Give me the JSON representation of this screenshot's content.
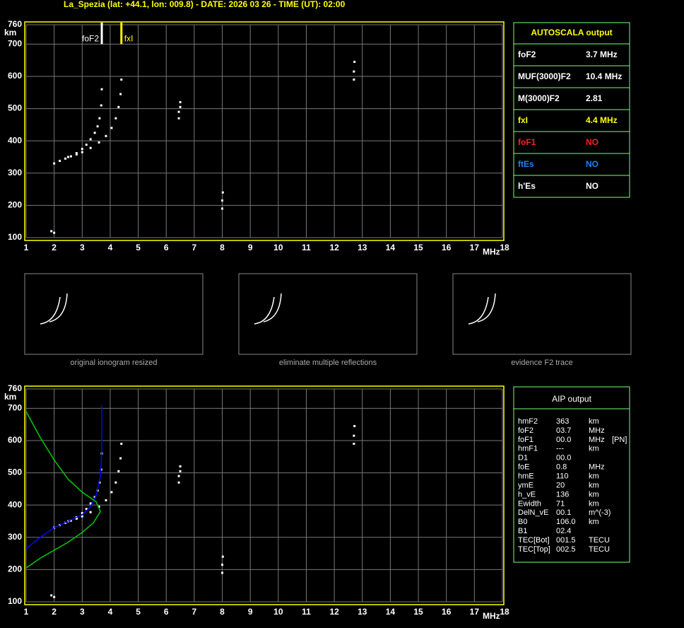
{
  "header": {
    "title": "La_Spezia (lat: +44.1, lon: 009.8) - DATE: 2026 03 26 - TIME (UT): 02:00"
  },
  "chart_data": [
    {
      "type": "scatter",
      "x_label": "MHz",
      "y_label": "km",
      "xlim": [
        1,
        18
      ],
      "ylim": [
        100,
        760
      ],
      "xticks": [
        1,
        2,
        3,
        4,
        5,
        6,
        7,
        8,
        9,
        10,
        11,
        12,
        13,
        14,
        15,
        16,
        17,
        18
      ],
      "yticks": [
        100,
        200,
        300,
        400,
        500,
        600,
        700,
        760
      ],
      "grid": true,
      "markers": [
        {
          "name": "foF2",
          "x": 3.7,
          "color": "#ffffff"
        },
        {
          "name": "fxI",
          "x": 4.4,
          "color": "#ffff00"
        }
      ],
      "series": [
        {
          "color": "#ffffff",
          "x": [
            2.0,
            2.2,
            2.4,
            2.6,
            2.8,
            3.0,
            3.15,
            3.3,
            3.45,
            3.55,
            3.62,
            3.68,
            3.7
          ],
          "values": [
            330,
            338,
            345,
            352,
            362,
            375,
            388,
            405,
            425,
            445,
            470,
            510,
            560
          ]
        },
        {
          "color": "#ffffff",
          "x": [
            2.5,
            2.8,
            3.0,
            3.3,
            3.6,
            3.85,
            4.05,
            4.2,
            4.3,
            4.37,
            4.4
          ],
          "values": [
            350,
            358,
            365,
            378,
            395,
            415,
            440,
            470,
            505,
            545,
            590
          ]
        },
        {
          "color": "#ffffff",
          "x": [
            6.45,
            6.45,
            6.5,
            6.5,
            8.0,
            8.0,
            8.02,
            12.7,
            12.7,
            12.72,
            1.9,
            2.0
          ],
          "values": [
            470,
            490,
            505,
            520,
            190,
            215,
            240,
            590,
            615,
            645,
            120,
            115
          ]
        }
      ]
    },
    {
      "type": "scatter",
      "x_label": "MHz",
      "y_label": "km",
      "xlim": [
        1,
        18
      ],
      "ylim": [
        100,
        760
      ],
      "xticks": [
        1,
        2,
        3,
        4,
        5,
        6,
        7,
        8,
        9,
        10,
        11,
        12,
        13,
        14,
        15,
        16,
        17,
        18
      ],
      "yticks": [
        100,
        200,
        300,
        400,
        500,
        600,
        700,
        760
      ],
      "grid": true,
      "series": [
        {
          "color": "#ffffff",
          "x": [
            2.0,
            2.2,
            2.4,
            2.6,
            2.8,
            3.0,
            3.15,
            3.3,
            3.45,
            3.55,
            3.62,
            3.68,
            3.7
          ],
          "values": [
            330,
            338,
            345,
            352,
            362,
            375,
            388,
            405,
            425,
            445,
            470,
            510,
            560
          ]
        },
        {
          "color": "#ffffff",
          "x": [
            2.5,
            2.8,
            3.0,
            3.3,
            3.6,
            3.85,
            4.05,
            4.2,
            4.3,
            4.37,
            4.4
          ],
          "values": [
            350,
            358,
            365,
            378,
            395,
            415,
            440,
            470,
            505,
            545,
            590
          ]
        },
        {
          "color": "#ffffff",
          "x": [
            6.45,
            6.45,
            6.5,
            6.5,
            8.0,
            8.0,
            8.02,
            12.7,
            12.7,
            12.72,
            1.9,
            2.0
          ],
          "values": [
            470,
            490,
            505,
            520,
            190,
            215,
            240,
            590,
            615,
            645,
            120,
            115
          ]
        },
        {
          "mode": "line",
          "color": "#0000ff",
          "x": [
            1.0,
            1.5,
            2.0,
            2.5,
            3.0,
            3.3,
            3.5,
            3.65,
            3.7,
            3.7
          ],
          "values": [
            265,
            300,
            330,
            350,
            370,
            395,
            430,
            490,
            560,
            710
          ]
        },
        {
          "mode": "line",
          "color": "#00cc00",
          "x": [
            1.0,
            1.5,
            2.0,
            2.5,
            3.0,
            3.4,
            3.65,
            3.5,
            3.0,
            2.5,
            2.0,
            1.5,
            1.0
          ],
          "values": [
            205,
            235,
            260,
            285,
            315,
            345,
            380,
            410,
            440,
            480,
            540,
            610,
            690
          ]
        }
      ]
    }
  ],
  "thumbnails": [
    {
      "caption": "original ionogram resized"
    },
    {
      "caption": "eliminate multiple reflections"
    },
    {
      "caption": "evidence F2 trace"
    }
  ],
  "autoscala": {
    "title": "AUTOSCALA output",
    "rows": [
      {
        "label": "foF2",
        "value": "3.7 MHz",
        "color": "#ffffff"
      },
      {
        "label": "MUF(3000)F2",
        "value": "10.4 MHz",
        "color": "#ffffff"
      },
      {
        "label": "M(3000)F2",
        "value": "2.81",
        "color": "#ffffff"
      },
      {
        "label": "fxI",
        "value": "4.4 MHz",
        "color": "#ffff00"
      },
      {
        "label": "foF1",
        "value": "NO",
        "color": "#ff2020"
      },
      {
        "label": "ftEs",
        "value": "NO",
        "color": "#2080ff"
      },
      {
        "label": "h'Es",
        "value": "NO",
        "color": "#ffffff"
      }
    ]
  },
  "aip": {
    "title": "AIP output",
    "rows": [
      [
        "hmF2",
        "363",
        "km"
      ],
      [
        "foF2",
        "03.7",
        "MHz"
      ],
      [
        "foF1",
        "00.0",
        "MHz",
        "[PN]"
      ],
      [
        "hmF1",
        "---",
        "km"
      ],
      [
        "D1",
        "00.0"
      ],
      [
        "foE",
        "0.8",
        "MHz"
      ],
      [
        "hmE",
        "110",
        "km"
      ],
      [
        "ymE",
        "20",
        "km"
      ],
      [
        "h_vE",
        "136",
        "km"
      ],
      [
        "Ewidth",
        "71",
        "km"
      ],
      [
        "DelN_vE",
        "00.1",
        "m^(-3)"
      ],
      [
        "B0",
        "106.0",
        "km"
      ],
      [
        "B1",
        "02.4"
      ],
      [
        "TEC[Bot]",
        "001.5",
        "TECU"
      ],
      [
        "TEC[Top]",
        "002.5",
        "TECU"
      ]
    ]
  }
}
